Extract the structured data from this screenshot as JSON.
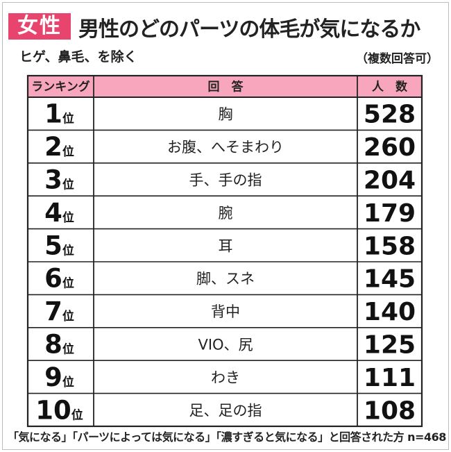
{
  "header": {
    "badge": "女性",
    "title": "男性のどのパーツの体毛が気になるか",
    "subtitle": "ヒゲ、鼻毛、を除く",
    "note": "（複数回答可）"
  },
  "footer": "「気になる」「パーツによっては気になる」「濃すぎると気になる」と回答された方 n=468",
  "colors": {
    "badge": "#e8456e",
    "header_bg": "#f7a6bd",
    "border": "#222222"
  },
  "chart_data": {
    "type": "table",
    "columns": [
      "ランキング",
      "回　答",
      "人　数"
    ],
    "rank_suffix": "位",
    "rows": [
      {
        "rank": "1",
        "answer": "胸",
        "count": 528
      },
      {
        "rank": "2",
        "answer": "お腹、へそまわり",
        "count": 260
      },
      {
        "rank": "3",
        "answer": "手、手の指",
        "count": 204
      },
      {
        "rank": "4",
        "answer": "腕",
        "count": 179
      },
      {
        "rank": "5",
        "answer": "耳",
        "count": 158
      },
      {
        "rank": "6",
        "answer": "脚、スネ",
        "count": 145
      },
      {
        "rank": "7",
        "answer": "背中",
        "count": 140
      },
      {
        "rank": "8",
        "answer": "VIO、尻",
        "count": 125
      },
      {
        "rank": "9",
        "answer": "わき",
        "count": 111
      },
      {
        "rank": "10",
        "answer": "足、足の指",
        "count": 108
      }
    ]
  }
}
